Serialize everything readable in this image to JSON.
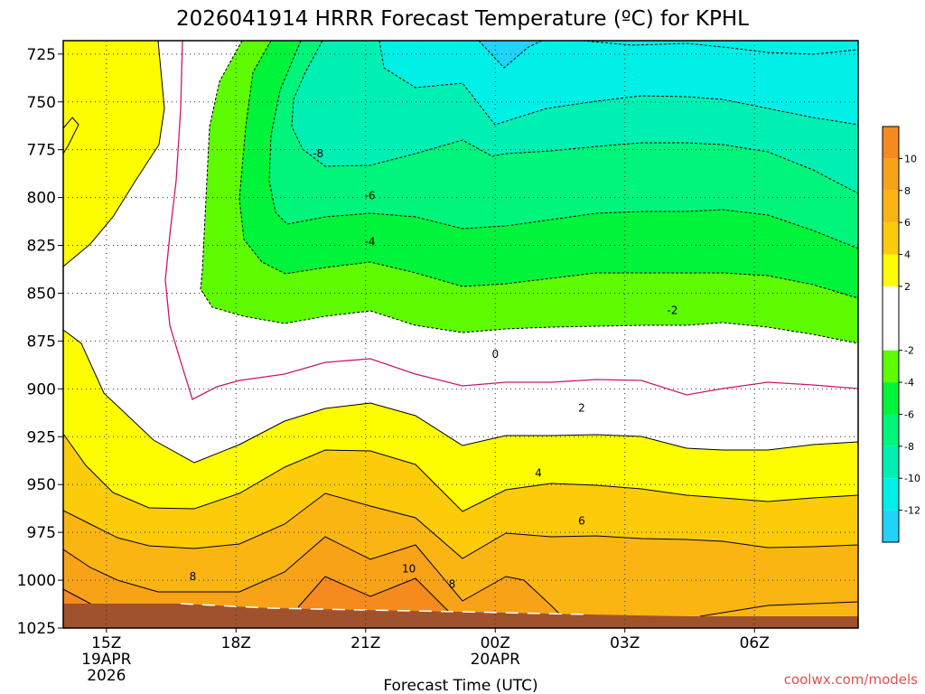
{
  "chart_data": {
    "type": "time-height contour",
    "title": "2026041914 HRRR Forecast Temperature (ºC) for KPHL",
    "xlabel": "Forecast Time (UTC)",
    "credit": "coolwx.com/models",
    "y_axis": {
      "unit": "hPa",
      "inverted": true,
      "ylim": [
        1025,
        718
      ],
      "ticks": [
        725,
        750,
        775,
        800,
        825,
        850,
        875,
        900,
        925,
        950,
        975,
        1000,
        1025
      ]
    },
    "x_axis": {
      "xlim_hours": [
        14.0,
        32.4
      ],
      "ticks": [
        {
          "hour": 15,
          "label": "15Z",
          "date": "19APR",
          "year": "2026"
        },
        {
          "hour": 18,
          "label": "18Z",
          "date": "",
          "year": ""
        },
        {
          "hour": 21,
          "label": "21Z",
          "date": "",
          "year": ""
        },
        {
          "hour": 24,
          "label": "00Z",
          "date": "20APR",
          "year": ""
        },
        {
          "hour": 27,
          "label": "03Z",
          "date": "",
          "year": ""
        },
        {
          "hour": 30,
          "label": "06Z",
          "date": "",
          "year": ""
        }
      ]
    },
    "colorbar": {
      "ticks": [
        10,
        8,
        6,
        4,
        2,
        -2,
        -4,
        -6,
        -8,
        -10,
        -12
      ],
      "bands": [
        {
          "from": 10,
          "to": 12,
          "color": "#f58a1f"
        },
        {
          "from": 8,
          "to": 10,
          "color": "#f8a218"
        },
        {
          "from": 6,
          "to": 8,
          "color": "#fab512"
        },
        {
          "from": 4,
          "to": 6,
          "color": "#fccb0a"
        },
        {
          "from": 2,
          "to": 4,
          "color": "#fdfd00"
        },
        {
          "from": -2,
          "to": 2,
          "color": "#ffffff"
        },
        {
          "from": -4,
          "to": -2,
          "color": "#5efc00"
        },
        {
          "from": -6,
          "to": -4,
          "color": "#00f43a"
        },
        {
          "from": -8,
          "to": -6,
          "color": "#00f57a"
        },
        {
          "from": -10,
          "to": -8,
          "color": "#00f0b4"
        },
        {
          "from": -12,
          "to": -10,
          "color": "#00f0e8"
        },
        {
          "from": -14,
          "to": -12,
          "color": "#1fd4f8"
        }
      ]
    },
    "contour_labels": [
      {
        "value": "-8",
        "hour": 19.9,
        "p": 777
      },
      {
        "value": "-6",
        "hour": 21.1,
        "p": 799
      },
      {
        "value": "-4",
        "hour": 21.1,
        "p": 823
      },
      {
        "value": "-2",
        "hour": 28.1,
        "p": 859
      },
      {
        "value": "0",
        "hour": 24.0,
        "p": 882
      },
      {
        "value": "2",
        "hour": 26.0,
        "p": 910
      },
      {
        "value": "4",
        "hour": 25.0,
        "p": 944
      },
      {
        "value": "6",
        "hour": 26.0,
        "p": 969
      },
      {
        "value": "8",
        "hour": 17.0,
        "p": 998
      },
      {
        "value": "10",
        "hour": 22.0,
        "p": 994
      },
      {
        "value": "8",
        "hour": 23.0,
        "p": 1002
      }
    ],
    "ground": {
      "color": "#a0522d"
    }
  }
}
